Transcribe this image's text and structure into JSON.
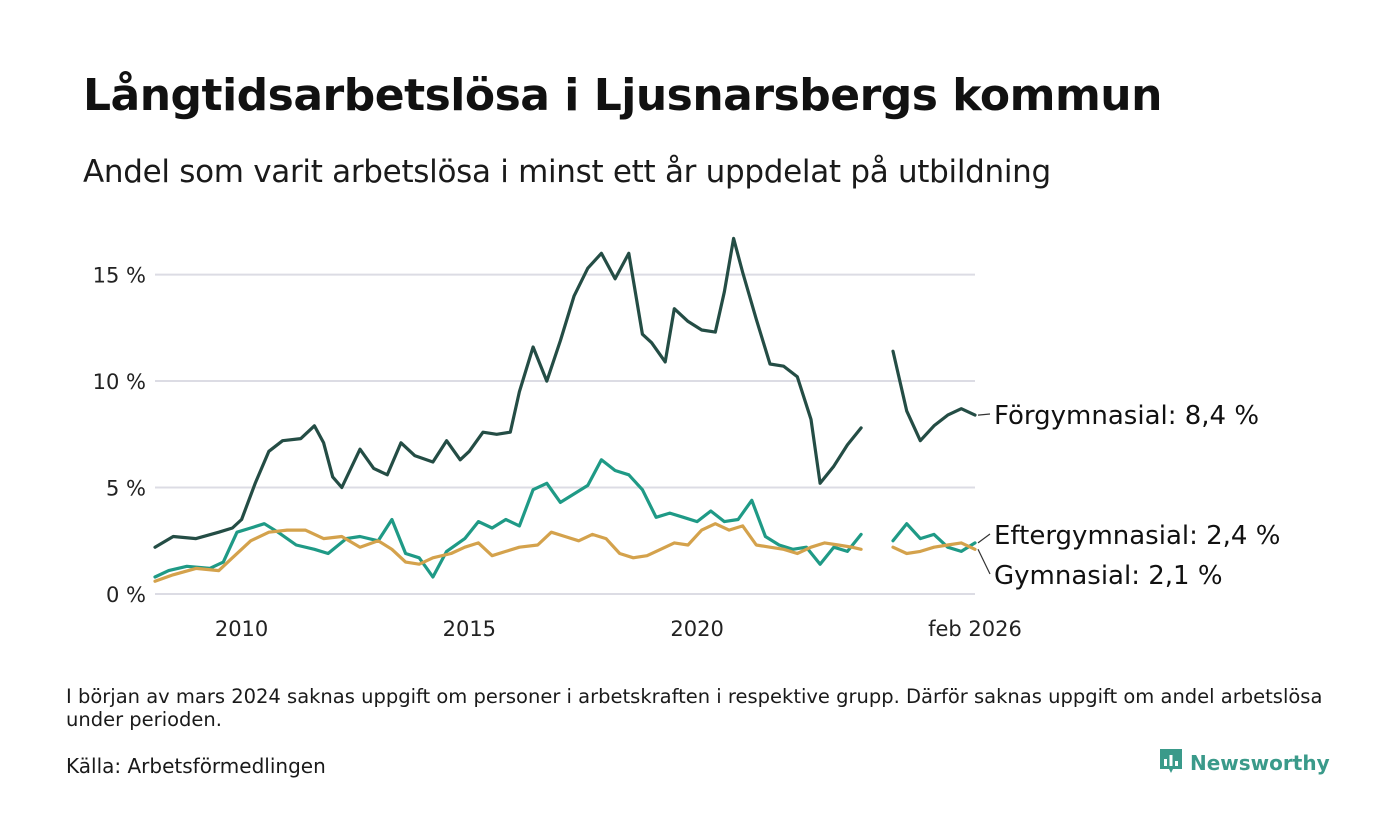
{
  "title": "Långtidsarbetslösa i Ljusnarsbergs kommun",
  "subtitle": "Andel som varit arbetslösa i minst ett år uppdelat på utbildning",
  "note": "I början av mars 2024 saknas uppgift om personer i arbetskraften i respektive grupp. Därför saknas uppgift om andel arbetslösa under perioden.",
  "source": "Källa: Arbetsförmedlingen",
  "brand": "Newsworthy",
  "colors": {
    "forgymnasial": "#244d45",
    "eftergymnasial": "#1f9a86",
    "gymnasial": "#d4a24c",
    "grid": "#dcdce4",
    "brand": "#3a9a8a"
  },
  "chart_data": {
    "type": "line",
    "x_unit": "decimal year",
    "xlim": [
      2008.1,
      2026.1
    ],
    "ylim": [
      0,
      17
    ],
    "y_ticks": [
      0,
      5,
      10,
      15
    ],
    "y_tick_labels": [
      "0 %",
      "5 %",
      "10 %",
      "15 %"
    ],
    "x_ticks": [
      2010,
      2015,
      2020,
      2026.1
    ],
    "x_tick_labels": [
      "2010",
      "2015",
      "2020",
      "feb 2026"
    ],
    "gap": [
      2023.6,
      2024.3
    ],
    "series": [
      {
        "name": "Förgymnasial",
        "end_label": "Förgymnasial: 8,4 %",
        "color_key": "forgymnasial",
        "points": [
          [
            2008.1,
            2.2
          ],
          [
            2008.5,
            2.7
          ],
          [
            2009.0,
            2.6
          ],
          [
            2009.5,
            2.9
          ],
          [
            2009.8,
            3.1
          ],
          [
            2010.0,
            3.5
          ],
          [
            2010.3,
            5.2
          ],
          [
            2010.6,
            6.7
          ],
          [
            2010.9,
            7.2
          ],
          [
            2011.3,
            7.3
          ],
          [
            2011.6,
            7.9
          ],
          [
            2011.8,
            7.1
          ],
          [
            2012.0,
            5.5
          ],
          [
            2012.2,
            5.0
          ],
          [
            2012.6,
            6.8
          ],
          [
            2012.9,
            5.9
          ],
          [
            2013.2,
            5.6
          ],
          [
            2013.5,
            7.1
          ],
          [
            2013.8,
            6.5
          ],
          [
            2014.2,
            6.2
          ],
          [
            2014.5,
            7.2
          ],
          [
            2014.8,
            6.3
          ],
          [
            2015.0,
            6.7
          ],
          [
            2015.3,
            7.6
          ],
          [
            2015.6,
            7.5
          ],
          [
            2015.9,
            7.6
          ],
          [
            2016.1,
            9.5
          ],
          [
            2016.4,
            11.6
          ],
          [
            2016.7,
            10.0
          ],
          [
            2017.0,
            11.9
          ],
          [
            2017.3,
            14.0
          ],
          [
            2017.6,
            15.3
          ],
          [
            2017.9,
            16.0
          ],
          [
            2018.2,
            14.8
          ],
          [
            2018.5,
            16.0
          ],
          [
            2018.8,
            12.2
          ],
          [
            2019.0,
            11.8
          ],
          [
            2019.3,
            10.9
          ],
          [
            2019.5,
            13.4
          ],
          [
            2019.8,
            12.8
          ],
          [
            2020.1,
            12.4
          ],
          [
            2020.4,
            12.3
          ],
          [
            2020.6,
            14.2
          ],
          [
            2020.8,
            16.7
          ],
          [
            2021.0,
            15.1
          ],
          [
            2021.3,
            12.9
          ],
          [
            2021.6,
            10.8
          ],
          [
            2021.9,
            10.7
          ],
          [
            2022.2,
            10.2
          ],
          [
            2022.5,
            8.2
          ],
          [
            2022.7,
            5.2
          ],
          [
            2023.0,
            6.0
          ],
          [
            2023.3,
            7.0
          ],
          [
            2023.6,
            7.8
          ],
          [
            2024.3,
            11.4
          ],
          [
            2024.6,
            8.6
          ],
          [
            2024.9,
            7.2
          ],
          [
            2025.2,
            7.9
          ],
          [
            2025.5,
            8.4
          ],
          [
            2025.8,
            8.7
          ],
          [
            2026.1,
            8.4
          ]
        ]
      },
      {
        "name": "Eftergymnasial",
        "end_label": "Eftergymnasial: 2,4 %",
        "color_key": "eftergymnasial",
        "points": [
          [
            2008.1,
            0.8
          ],
          [
            2008.4,
            1.1
          ],
          [
            2008.8,
            1.3
          ],
          [
            2009.3,
            1.2
          ],
          [
            2009.6,
            1.5
          ],
          [
            2009.9,
            2.9
          ],
          [
            2010.2,
            3.1
          ],
          [
            2010.5,
            3.3
          ],
          [
            2010.8,
            2.9
          ],
          [
            2011.2,
            2.3
          ],
          [
            2011.6,
            2.1
          ],
          [
            2011.9,
            1.9
          ],
          [
            2012.3,
            2.6
          ],
          [
            2012.6,
            2.7
          ],
          [
            2013.0,
            2.5
          ],
          [
            2013.3,
            3.5
          ],
          [
            2013.6,
            1.9
          ],
          [
            2013.9,
            1.7
          ],
          [
            2014.2,
            0.8
          ],
          [
            2014.5,
            2.0
          ],
          [
            2014.9,
            2.6
          ],
          [
            2015.2,
            3.4
          ],
          [
            2015.5,
            3.1
          ],
          [
            2015.8,
            3.5
          ],
          [
            2016.1,
            3.2
          ],
          [
            2016.4,
            4.9
          ],
          [
            2016.7,
            5.2
          ],
          [
            2017.0,
            4.3
          ],
          [
            2017.3,
            4.7
          ],
          [
            2017.6,
            5.1
          ],
          [
            2017.9,
            6.3
          ],
          [
            2018.2,
            5.8
          ],
          [
            2018.5,
            5.6
          ],
          [
            2018.8,
            4.9
          ],
          [
            2019.1,
            3.6
          ],
          [
            2019.4,
            3.8
          ],
          [
            2019.7,
            3.6
          ],
          [
            2020.0,
            3.4
          ],
          [
            2020.3,
            3.9
          ],
          [
            2020.6,
            3.4
          ],
          [
            2020.9,
            3.5
          ],
          [
            2021.2,
            4.4
          ],
          [
            2021.5,
            2.7
          ],
          [
            2021.8,
            2.3
          ],
          [
            2022.1,
            2.1
          ],
          [
            2022.4,
            2.2
          ],
          [
            2022.7,
            1.4
          ],
          [
            2023.0,
            2.2
          ],
          [
            2023.3,
            2.0
          ],
          [
            2023.6,
            2.8
          ],
          [
            2024.3,
            2.5
          ],
          [
            2024.6,
            3.3
          ],
          [
            2024.9,
            2.6
          ],
          [
            2025.2,
            2.8
          ],
          [
            2025.5,
            2.2
          ],
          [
            2025.8,
            2.0
          ],
          [
            2026.1,
            2.4
          ]
        ]
      },
      {
        "name": "Gymnasial",
        "end_label": "Gymnasial: 2,1 %",
        "color_key": "gymnasial",
        "points": [
          [
            2008.1,
            0.6
          ],
          [
            2008.5,
            0.9
          ],
          [
            2009.0,
            1.2
          ],
          [
            2009.5,
            1.1
          ],
          [
            2009.8,
            1.7
          ],
          [
            2010.2,
            2.5
          ],
          [
            2010.6,
            2.9
          ],
          [
            2011.0,
            3.0
          ],
          [
            2011.4,
            3.0
          ],
          [
            2011.8,
            2.6
          ],
          [
            2012.2,
            2.7
          ],
          [
            2012.6,
            2.2
          ],
          [
            2013.0,
            2.5
          ],
          [
            2013.3,
            2.1
          ],
          [
            2013.6,
            1.5
          ],
          [
            2013.9,
            1.4
          ],
          [
            2014.2,
            1.7
          ],
          [
            2014.6,
            1.9
          ],
          [
            2014.9,
            2.2
          ],
          [
            2015.2,
            2.4
          ],
          [
            2015.5,
            1.8
          ],
          [
            2015.8,
            2.0
          ],
          [
            2016.1,
            2.2
          ],
          [
            2016.5,
            2.3
          ],
          [
            2016.8,
            2.9
          ],
          [
            2017.1,
            2.7
          ],
          [
            2017.4,
            2.5
          ],
          [
            2017.7,
            2.8
          ],
          [
            2018.0,
            2.6
          ],
          [
            2018.3,
            1.9
          ],
          [
            2018.6,
            1.7
          ],
          [
            2018.9,
            1.8
          ],
          [
            2019.2,
            2.1
          ],
          [
            2019.5,
            2.4
          ],
          [
            2019.8,
            2.3
          ],
          [
            2020.1,
            3.0
          ],
          [
            2020.4,
            3.3
          ],
          [
            2020.7,
            3.0
          ],
          [
            2021.0,
            3.2
          ],
          [
            2021.3,
            2.3
          ],
          [
            2021.6,
            2.2
          ],
          [
            2021.9,
            2.1
          ],
          [
            2022.2,
            1.9
          ],
          [
            2022.5,
            2.2
          ],
          [
            2022.8,
            2.4
          ],
          [
            2023.1,
            2.3
          ],
          [
            2023.4,
            2.2
          ],
          [
            2023.6,
            2.1
          ],
          [
            2024.3,
            2.2
          ],
          [
            2024.6,
            1.9
          ],
          [
            2024.9,
            2.0
          ],
          [
            2025.2,
            2.2
          ],
          [
            2025.5,
            2.3
          ],
          [
            2025.8,
            2.4
          ],
          [
            2026.1,
            2.1
          ]
        ]
      }
    ]
  }
}
